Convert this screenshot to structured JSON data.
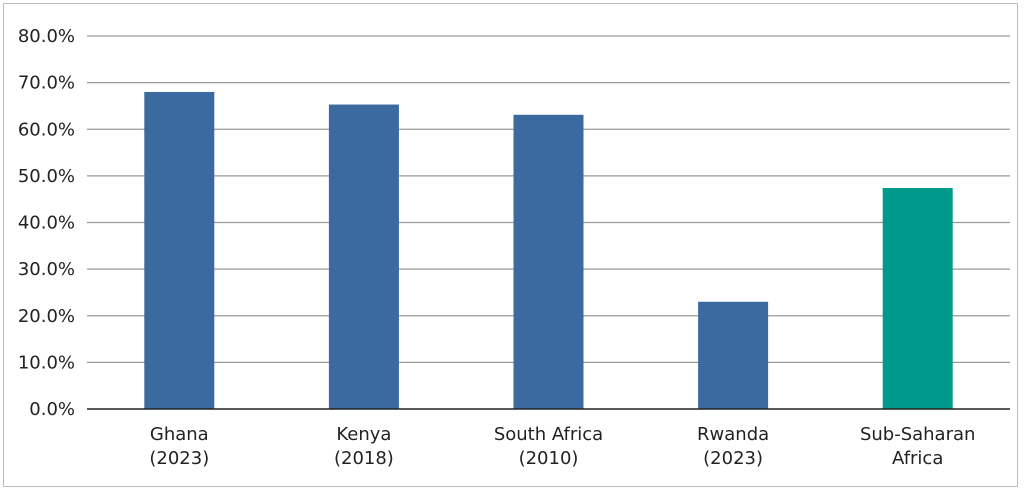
{
  "chart_data": {
    "type": "bar",
    "categories": [
      [
        "Ghana",
        "(2023)"
      ],
      [
        "Kenya",
        "(2018)"
      ],
      [
        "South Africa",
        "(2010)"
      ],
      [
        "Rwanda",
        "(2023)"
      ],
      [
        "Sub-Saharan",
        "Africa"
      ]
    ],
    "values": [
      68.0,
      65.3,
      63.1,
      23.0,
      47.4
    ],
    "bar_colors": [
      "#3a6aa0",
      "#3a6aa0",
      "#3a6aa0",
      "#3a6aa0",
      "#009a8c"
    ],
    "ylim": [
      0,
      80
    ],
    "y_ticks": [
      "0.0%",
      "10.0%",
      "20.0%",
      "30.0%",
      "40.0%",
      "50.0%",
      "60.0%",
      "70.0%",
      "80.0%"
    ],
    "grid": true,
    "legend": "none",
    "title": "",
    "xlabel": "",
    "ylabel": ""
  }
}
